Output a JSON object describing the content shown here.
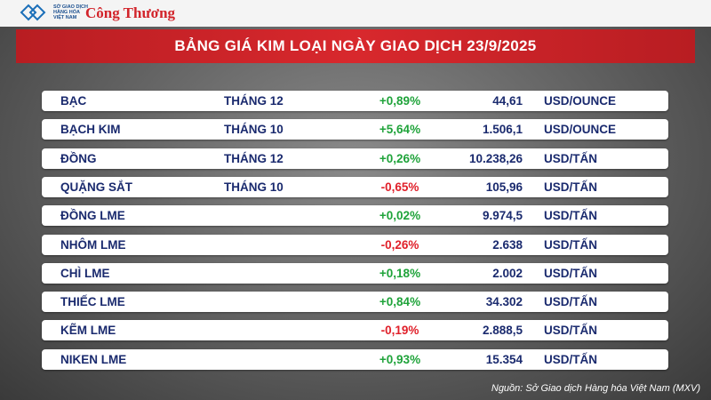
{
  "header": {
    "logo_lines": [
      "SỞ GIAO DỊCH",
      "HÀNG HÓA",
      "VIỆT NAM"
    ],
    "brand": "Công Thương",
    "title": "BẢNG GIÁ KIM LOẠI NGÀY GIAO DỊCH 23/9/2025"
  },
  "table": {
    "rows": [
      [
        "BẠC",
        "THÁNG 12",
        "+0,89%",
        "44,61",
        "USD/OUNCE"
      ],
      [
        "BẠCH KIM",
        "THÁNG 10",
        "+5,64%",
        "1.506,1",
        "USD/OUNCE"
      ],
      [
        "ĐỒNG",
        "THÁNG 12",
        "+0,26%",
        "10.238,26",
        "USD/TẤN"
      ],
      [
        "QUẶNG SẮT",
        "THÁNG 10",
        "-0,65%",
        "105,96",
        "USD/TẤN"
      ],
      [
        "ĐỒNG LME",
        "",
        "+0,02%",
        "9.974,5",
        "USD/TẤN"
      ],
      [
        "NHÔM LME",
        "",
        "-0,26%",
        "2.638",
        "USD/TẤN"
      ],
      [
        "CHÌ LME",
        "",
        "+0,18%",
        "2.002",
        "USD/TẤN"
      ],
      [
        "THIẾC LME",
        "",
        "+0,84%",
        "34.302",
        "USD/TẤN"
      ],
      [
        "KẼM LME",
        "",
        "-0,19%",
        "2.888,5",
        "USD/TẤN"
      ],
      [
        "NIKEN LME",
        "",
        "+0,93%",
        "15.354",
        "USD/TẤN"
      ]
    ]
  },
  "footer": {
    "source": "Nguồn: Sở Giao dịch Hàng hóa Việt Nam (MXV)"
  }
}
